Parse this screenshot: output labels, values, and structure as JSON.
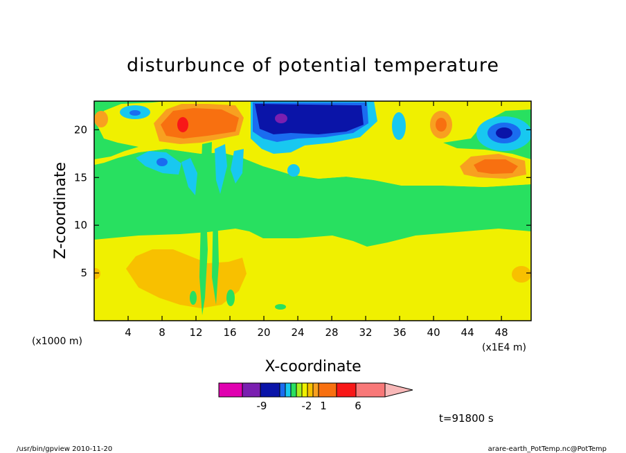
{
  "chart_data": {
    "type": "heatmap",
    "title": "disturbunce of potential temperature",
    "xlabel": "X-coordinate",
    "ylabel": "Z-coordinate",
    "x_unit": "(x1E4 m)",
    "y_unit": "(x1000 m)",
    "xlim": [
      0,
      51.5
    ],
    "ylim": [
      0,
      23
    ],
    "x_ticks": [
      4,
      8,
      12,
      16,
      20,
      24,
      28,
      32,
      36,
      40,
      44,
      48
    ],
    "y_ticks": [
      5,
      10,
      15,
      20
    ],
    "colorbar": {
      "colors": [
        "#e000b0",
        "#7a1fb0",
        "#0a14a8",
        "#1a6cf0",
        "#18c8f0",
        "#28e060",
        "#a8f020",
        "#f0f000",
        "#f8c000",
        "#f8a020",
        "#f87010",
        "#f81818",
        "#f87878",
        "#f8b8b8"
      ],
      "tick_labels": [
        "-9",
        "-2",
        "1",
        "6"
      ]
    },
    "regions": [
      {
        "name": "background-lower",
        "level": "0.5",
        "x": [
          0,
          51.5
        ],
        "z": [
          0,
          9
        ]
      },
      {
        "name": "green-band",
        "level": "-0.5",
        "x": [
          0,
          51.5
        ],
        "z": [
          9,
          14
        ]
      },
      {
        "name": "lower-warm-blob",
        "level": "2",
        "x": [
          4,
          17
        ],
        "z": [
          1,
          7.5
        ]
      },
      {
        "name": "upper-hot-core",
        "level": "8",
        "x": [
          9,
          12
        ],
        "z": [
          19,
          21
        ]
      },
      {
        "name": "upper-cold-core",
        "level": "-9",
        "x": [
          19,
          30
        ],
        "z": [
          19,
          22.5
        ]
      },
      {
        "name": "right-cold-core",
        "level": "-6",
        "x": [
          45,
          50
        ],
        "z": [
          18.5,
          20.5
        ]
      },
      {
        "name": "right-warm-lens",
        "level": "3",
        "x": [
          43,
          49
        ],
        "z": [
          15,
          17
        ]
      }
    ]
  },
  "time_label": "t=91800 s",
  "footer_left": "/usr/bin/gpview   2010-11-20",
  "footer_right": "arare-earth_PotTemp.nc@PotTemp"
}
